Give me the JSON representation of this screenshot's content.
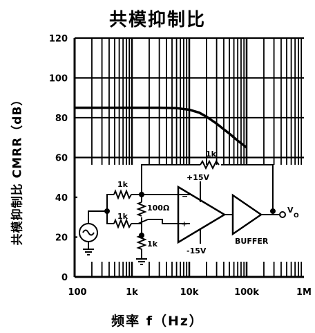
{
  "chart_data": {
    "type": "line",
    "title": "共模抑制比",
    "xlabel": "频率 f（Hz）",
    "ylabel": "共模抑制比 CMRR（dB）",
    "xscale": "log",
    "xlim": [
      100,
      1000000
    ],
    "ylim": [
      0,
      120
    ],
    "x_tick_labels": [
      "100",
      "1k",
      "10k",
      "100k",
      "1M"
    ],
    "x_ticks": [
      100,
      1000,
      10000,
      100000,
      1000000
    ],
    "y_ticks": [
      0,
      20,
      40,
      60,
      80,
      100,
      120
    ],
    "grid": true,
    "series": [
      {
        "x": [
          100,
          300,
          1000,
          3000,
          6000,
          10000,
          15000,
          20000,
          30000,
          50000,
          70000,
          100000
        ],
        "y": [
          85,
          85,
          85,
          85,
          84.8,
          84,
          82.5,
          80.5,
          77,
          72,
          68.5,
          65
        ]
      }
    ]
  },
  "circuit": {
    "labels": {
      "r_in_top": "1k",
      "r_in_bottom": "1k",
      "r_100": "100Ω",
      "r_gnd": "1k",
      "r_fb": "1k",
      "v_pos": "+15V",
      "v_neg": "-15V",
      "minus": "−",
      "plus": "+",
      "buffer": "BUFFER",
      "vout": "V",
      "vout_sub": "O"
    }
  }
}
